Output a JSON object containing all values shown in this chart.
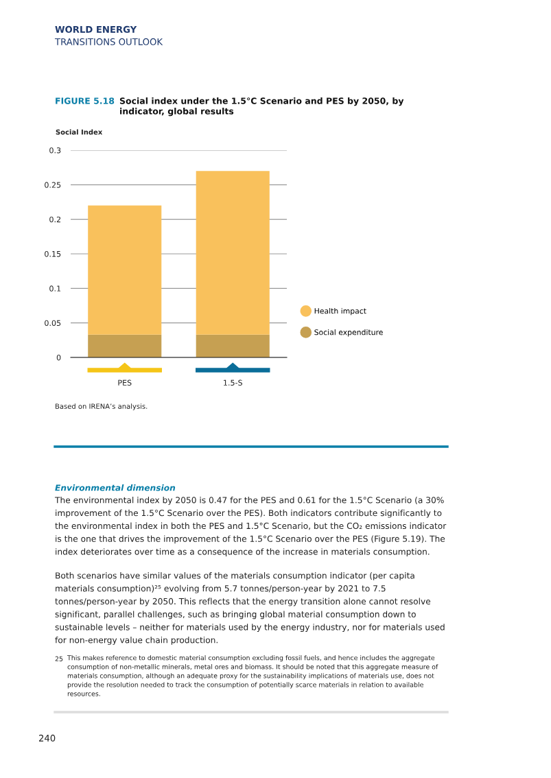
{
  "chart_data": {
    "type": "bar",
    "stacked": true,
    "title": "Social index under the 1.5°C Scenario and PES by 2050, by indicator, global results",
    "ylabel": "Social Index",
    "categories": [
      "PES",
      "1.5-S"
    ],
    "series": [
      {
        "name": "Social expenditure",
        "color": "#c6a052",
        "values": [
          0.033,
          0.033
        ]
      },
      {
        "name": "Health impact",
        "color": "#f9c15c",
        "values": [
          0.187,
          0.237
        ]
      }
    ],
    "ylim": [
      0,
      0.3
    ],
    "yticks": [
      0,
      0.05,
      0.1,
      0.15,
      0.2,
      0.25,
      0.3
    ],
    "grid": "y",
    "legend": "right",
    "marker": "circle",
    "annotations": [
      "WORLD ENERGY",
      "TRANSITIONS OUTLOOK",
      "FIGURE 5.18",
      "Based on IRENA’s analysis.",
      "Environmental dimension",
      "The environmental index by 2050 is 0.47 for the PES and 0.61 for the 1.5°C Scenario (a 30% improvement of the 1.5°C Scenario over the PES). Both indicators contribute significantly to the environmental index in both the PES and 1.5°C Scenario, but the CO₂ emissions indicator is the one that drives the improvement of the 1.5°C Scenario over the PES (Figure 5.19). The index deteriorates over time as a consequence of the increase in materials consumption.",
      "Both scenarios have similar values of the materials consumption indicator (per capita materials consumption)²⁵ evolving from 5.7 tonnes/person-year by 2021 to 7.5 tonnes/person-year by 2050. This reflects that the energy transition alone cannot resolve significant, parallel challenges, such as bringing global material consumption down to sustainable levels – neither for materials used by the energy industry, nor for materials used for non-energy value chain production.",
      "25",
      "This makes reference to domestic material consumption excluding fossil fuels, and hence includes the aggregate consumption of non-metallic minerals, metal ores and biomass. It should be noted that this aggregate measure of materials consumption, although an adequate proxy for the sustainability implications of materials use, does not provide the resolution needed to track the consumption of potentially scarce materials in relation to available resources.",
      "240"
    ]
  }
}
